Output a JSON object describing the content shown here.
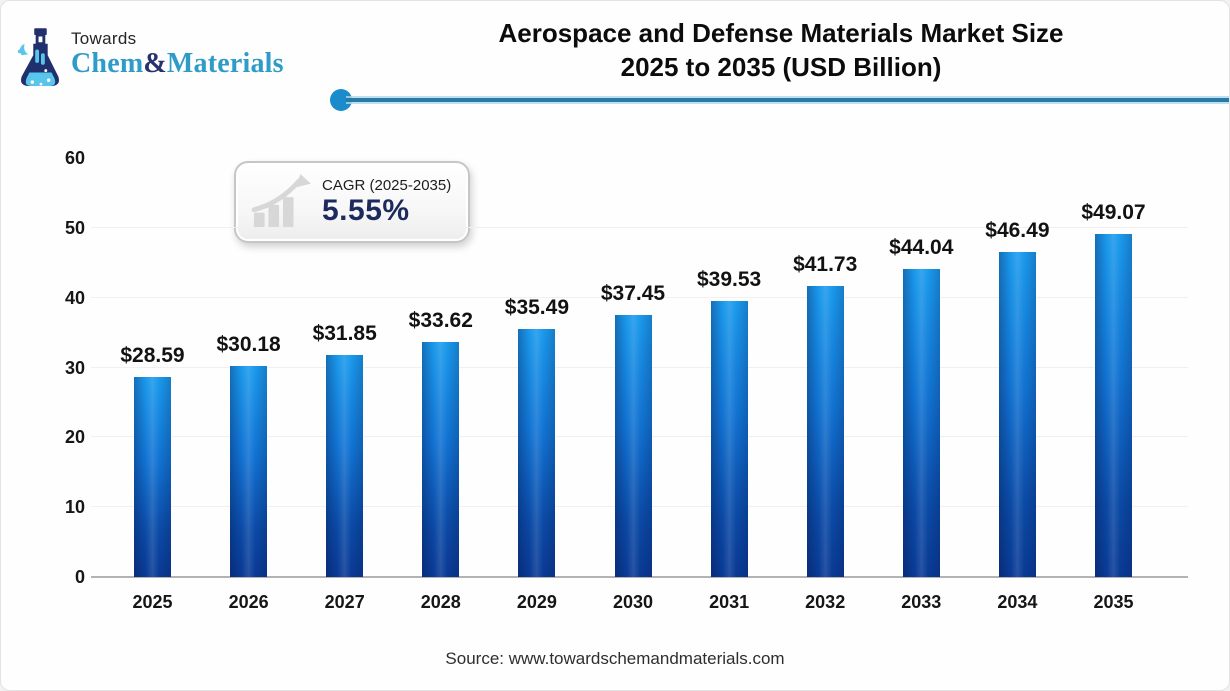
{
  "logo": {
    "tagline": "Towards",
    "brand_chem": "Chem",
    "brand_amp": "&",
    "brand_materials": "Materials"
  },
  "title": {
    "line1": "Aerospace and Defense Materials Market Size",
    "line2": "2025 to 2035 (USD Billion)"
  },
  "cagr": {
    "label": "CAGR (2025-2035)",
    "value": "5.55%"
  },
  "chart_data": {
    "type": "bar",
    "title": "Aerospace and Defense Materials Market Size 2025 to 2035 (USD Billion)",
    "unit": "USD Billion",
    "categories": [
      "2025",
      "2026",
      "2027",
      "2028",
      "2029",
      "2030",
      "2031",
      "2032",
      "2033",
      "2034",
      "2035"
    ],
    "values": [
      28.59,
      30.18,
      31.85,
      33.62,
      35.49,
      37.45,
      39.53,
      41.73,
      44.04,
      46.49,
      49.07
    ],
    "value_labels": [
      "$28.59",
      "$30.18",
      "$31.85",
      "$33.62",
      "$35.49",
      "$37.45",
      "$39.53",
      "$41.73",
      "$44.04",
      "$46.49",
      "$49.07"
    ],
    "ylim": [
      0,
      60
    ],
    "yticks": [
      0,
      10,
      20,
      30,
      40,
      50,
      60
    ],
    "grid": true,
    "legend": "none",
    "bar_color_top": "#1b9aec",
    "bar_color_bottom": "#0a3a94"
  },
  "footer": {
    "source": "Source: www.towardschemandmaterials.com"
  },
  "colors": {
    "accent_dot": "#1b8ccb",
    "accent_line": "#2b7aa4",
    "brand_teal": "#2e9cc7",
    "brand_navy": "#27316d",
    "cagr_value_color": "#1c2a5e",
    "axis_line": "#b3b3b3"
  }
}
